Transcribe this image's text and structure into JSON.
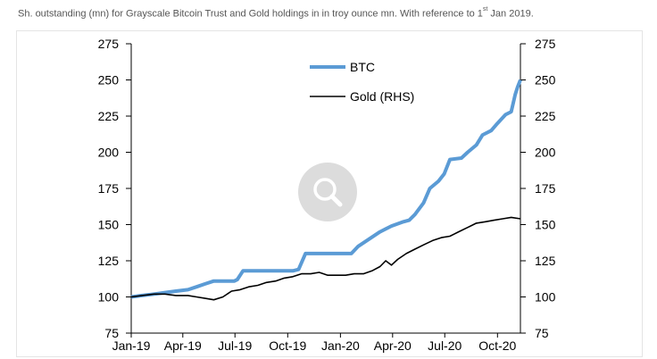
{
  "caption": {
    "text": "Sh. outstanding (mn) for Grayscale Bitcoin Trust and Gold holdings in in troy ounce mn. With reference to 1",
    "sup": "st",
    "tail": " Jan 2019."
  },
  "zoom_icon": "magnifier-icon",
  "chart_data": {
    "type": "line",
    "x_ticks": [
      "Jan-19",
      "Apr-19",
      "Jul-19",
      "Oct-19",
      "Jan-20",
      "Apr-20",
      "Jul-20",
      "Oct-20"
    ],
    "y_ticks": [
      75,
      100,
      125,
      150,
      175,
      200,
      225,
      250,
      275
    ],
    "ylim": [
      75,
      275
    ],
    "y2lim": [
      75,
      275
    ],
    "grid": false,
    "legend_position": "top-center",
    "series": [
      {
        "name": "BTC",
        "color": "#5b9bd5",
        "axis": "left",
        "x": [
          "2019-01-01",
          "2019-01-20",
          "2019-02-10",
          "2019-03-01",
          "2019-03-20",
          "2019-04-10",
          "2019-04-25",
          "2019-05-10",
          "2019-05-25",
          "2019-06-30",
          "2019-07-05",
          "2019-07-15",
          "2019-08-15",
          "2019-09-15",
          "2019-10-10",
          "2019-10-20",
          "2019-11-01",
          "2019-11-20",
          "2019-12-20",
          "2020-01-20",
          "2020-02-01",
          "2020-02-20",
          "2020-03-10",
          "2020-03-30",
          "2020-04-20",
          "2020-04-30",
          "2020-05-10",
          "2020-05-25",
          "2020-06-05",
          "2020-06-20",
          "2020-06-30",
          "2020-07-10",
          "2020-07-30",
          "2020-08-10",
          "2020-08-25",
          "2020-09-05",
          "2020-09-20",
          "2020-10-01",
          "2020-10-15",
          "2020-10-25",
          "2020-11-01",
          "2020-11-05",
          "2020-11-10"
        ],
        "values": [
          100,
          101,
          102,
          103,
          104,
          105,
          107,
          109,
          111,
          111,
          112,
          118,
          118,
          118,
          118,
          119,
          130,
          130,
          130,
          130,
          135,
          140,
          145,
          149,
          152,
          153,
          157,
          165,
          175,
          180,
          185,
          195,
          196,
          200,
          205,
          212,
          215,
          220,
          226,
          228,
          240,
          245,
          250
        ]
      },
      {
        "name": "Gold (RHS)",
        "color": "#000000",
        "axis": "right",
        "x": [
          "2019-01-01",
          "2019-01-20",
          "2019-02-10",
          "2019-03-01",
          "2019-03-20",
          "2019-04-10",
          "2019-04-25",
          "2019-05-10",
          "2019-05-25",
          "2019-06-10",
          "2019-06-25",
          "2019-07-10",
          "2019-07-25",
          "2019-08-10",
          "2019-08-25",
          "2019-09-10",
          "2019-09-25",
          "2019-10-10",
          "2019-10-25",
          "2019-11-10",
          "2019-11-25",
          "2019-12-10",
          "2019-12-25",
          "2020-01-10",
          "2020-01-25",
          "2020-02-10",
          "2020-02-25",
          "2020-03-10",
          "2020-03-20",
          "2020-03-30",
          "2020-04-10",
          "2020-04-25",
          "2020-05-10",
          "2020-05-25",
          "2020-06-10",
          "2020-06-25",
          "2020-07-10",
          "2020-07-25",
          "2020-08-10",
          "2020-08-25",
          "2020-09-10",
          "2020-09-25",
          "2020-10-10",
          "2020-10-25",
          "2020-11-10"
        ],
        "values": [
          100,
          101,
          102,
          102,
          101,
          101,
          100,
          99,
          98,
          100,
          104,
          105,
          107,
          108,
          110,
          111,
          113,
          114,
          116,
          116,
          117,
          115,
          115,
          115,
          116,
          116,
          118,
          121,
          125,
          122,
          126,
          130,
          133,
          136,
          139,
          141,
          142,
          145,
          148,
          151,
          152,
          153,
          154,
          155,
          154
        ]
      }
    ]
  }
}
